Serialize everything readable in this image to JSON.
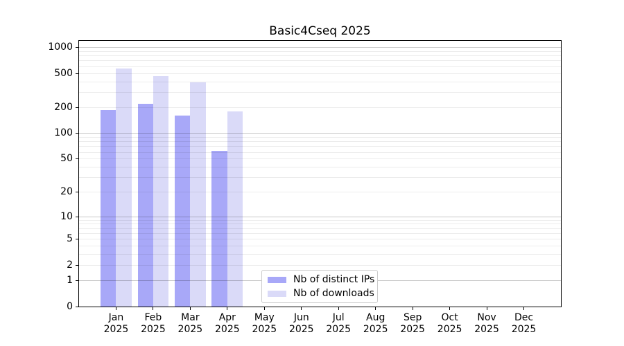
{
  "chart_data": {
    "type": "bar",
    "title": "Basic4Cseq 2025",
    "categories": [
      "Jan",
      "Feb",
      "Mar",
      "Apr",
      "May",
      "Jun",
      "Jul",
      "Aug",
      "Sep",
      "Oct",
      "Nov",
      "Dec"
    ],
    "category_year": "2025",
    "series": [
      {
        "name": "Nb of distinct IPs",
        "color": "#a8a8f8",
        "values": [
          188,
          222,
          162,
          63,
          null,
          null,
          null,
          null,
          null,
          null,
          null,
          null
        ]
      },
      {
        "name": "Nb of downloads",
        "color": "#dadaf8",
        "values": [
          565,
          462,
          393,
          181,
          null,
          null,
          null,
          null,
          null,
          null,
          null,
          null
        ]
      }
    ],
    "yticks": [
      0,
      1,
      2,
      5,
      10,
      20,
      50,
      100,
      200,
      500,
      1000
    ],
    "ylim": [
      0,
      1000
    ],
    "yscale": "log10(value+1)",
    "grid": "horizontal, minor lines at 2-9 per decade, major lines at 1/10/100/1000, drawn over bars",
    "legend_position": "lower center inside plot"
  },
  "colors": {
    "bar_distinct_ips": "#a8a8f8",
    "bar_downloads": "#dadaf8",
    "spine": "#000000",
    "legend_border": "#cbcbcb"
  }
}
